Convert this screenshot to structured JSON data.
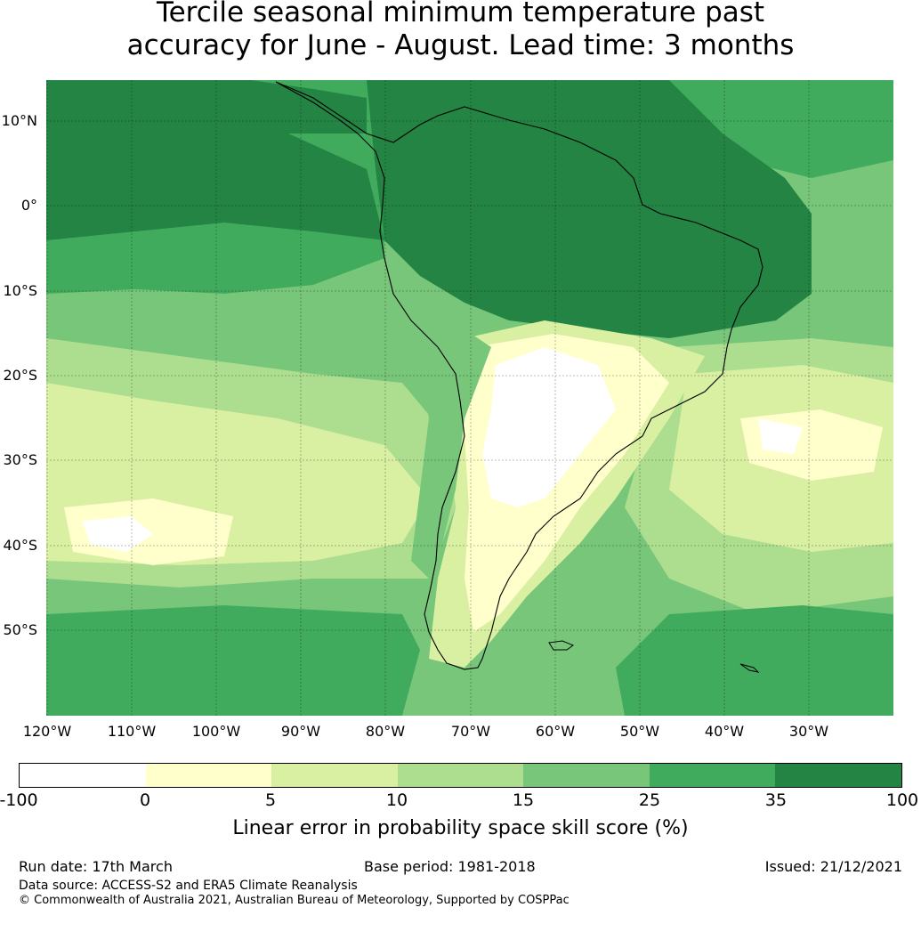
{
  "title": {
    "line1": "Tercile seasonal minimum temperature past",
    "line2": "accuracy for June - August. Lead time: 3 months"
  },
  "map": {
    "lat_labels": [
      "10°N",
      "0°",
      "10°S",
      "20°S",
      "30°S",
      "40°S",
      "50°S"
    ],
    "lon_labels": [
      "120°W",
      "110°W",
      "100°W",
      "90°W",
      "80°W",
      "70°W",
      "60°W",
      "50°W",
      "40°W",
      "30°W"
    ]
  },
  "colorbar": {
    "colors": [
      "#ffffff",
      "#ffffcc",
      "#d9f0a3",
      "#addd8e",
      "#78c679",
      "#41ab5d",
      "#238443"
    ],
    "ticks": [
      "-100",
      "0",
      "5",
      "10",
      "15",
      "25",
      "35",
      "100"
    ],
    "label": "Linear error in probability space skill score (%)"
  },
  "footer": {
    "run_date": "Run date: 17th March",
    "base_period": "Base period: 1981-2018",
    "issued": "Issued: 21/12/2021",
    "data_source": "Data source: ACCESS-S2 and ERA5 Climate Reanalysis",
    "copyright": "© Commonwealth of Australia 2021, Australian Bureau of Meteorology, Supported by COSPPac"
  }
}
